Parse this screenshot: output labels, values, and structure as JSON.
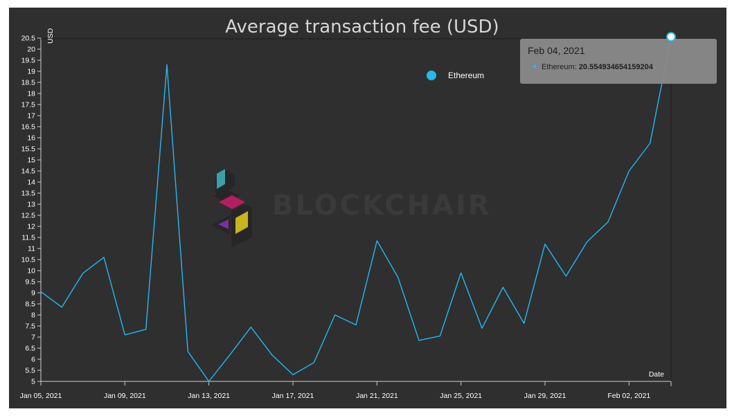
{
  "chart_data": {
    "type": "line",
    "title": "Average transaction fee (USD)",
    "xlabel": "Date",
    "ylabel": "USD",
    "x": [
      "2021-01-05",
      "2021-01-06",
      "2021-01-07",
      "2021-01-08",
      "2021-01-09",
      "2021-01-10",
      "2021-01-11",
      "2021-01-12",
      "2021-01-13",
      "2021-01-14",
      "2021-01-15",
      "2021-01-16",
      "2021-01-17",
      "2021-01-18",
      "2021-01-19",
      "2021-01-20",
      "2021-01-21",
      "2021-01-22",
      "2021-01-23",
      "2021-01-24",
      "2021-01-25",
      "2021-01-26",
      "2021-01-27",
      "2021-01-28",
      "2021-01-29",
      "2021-01-30",
      "2021-01-31",
      "2021-02-01",
      "2021-02-02",
      "2021-02-03",
      "2021-02-04"
    ],
    "series": [
      {
        "name": "Ethereum",
        "color": "#1ebcf2",
        "values": [
          9.05,
          8.35,
          9.88,
          10.6,
          7.1,
          7.35,
          19.3,
          6.35,
          5.0,
          6.2,
          7.45,
          6.2,
          5.3,
          5.85,
          8.0,
          7.55,
          11.35,
          9.7,
          6.85,
          7.05,
          9.9,
          7.4,
          9.25,
          7.62,
          11.2,
          9.75,
          11.3,
          12.2,
          14.5,
          15.75,
          20.554934654159204
        ]
      }
    ],
    "x_tick_labels": [
      "Jan 05, 2021",
      "Jan 09, 2021",
      "Jan 13, 2021",
      "Jan 17, 2021",
      "Jan 21, 2021",
      "Jan 25, 2021",
      "Jan 29, 2021",
      "Feb 02, 2021"
    ],
    "y_tick_labels": [
      "5",
      "5.5",
      "6",
      "6.5",
      "7",
      "7.5",
      "8",
      "8.5",
      "9",
      "9.5",
      "10",
      "10.5",
      "11",
      "11.5",
      "12",
      "12.5",
      "13",
      "13.5",
      "14",
      "14.5",
      "15",
      "15.5",
      "16",
      "16.5",
      "17",
      "17.5",
      "18",
      "18.5",
      "19",
      "19.5",
      "20",
      "20.5"
    ],
    "ylim": [
      5,
      20.5
    ],
    "grid": false,
    "legend_position": "top-right",
    "watermark": "BLOCKCHAIR",
    "tooltip": {
      "date": "Feb 04, 2021",
      "series_label": "Ethereum:",
      "value_text": "20.554934654159204"
    }
  }
}
